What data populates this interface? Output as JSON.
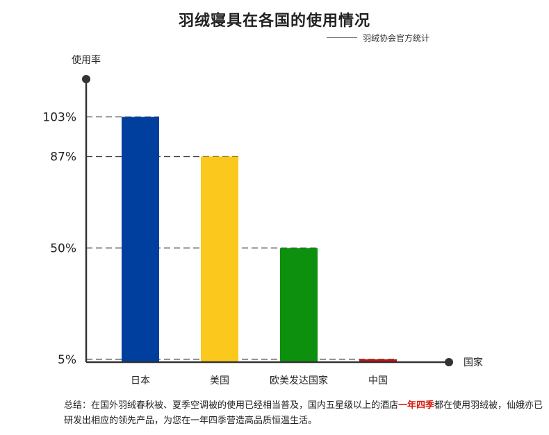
{
  "chart_data": {
    "type": "bar",
    "title": "羽绒寝具在各国的使用情况",
    "subtitle": "羽绒协会官方统计",
    "ylabel": "使用率",
    "xlabel": "国家",
    "categories": [
      "日本",
      "美国",
      "欧美发达国家",
      "中国"
    ],
    "values": [
      103,
      87,
      50,
      5
    ],
    "value_labels": [
      "103%",
      "87%",
      "50%",
      "5%"
    ],
    "colors": [
      "#003f9e",
      "#fbc81e",
      "#0c900e",
      "#c60f0f"
    ],
    "ylim": [
      0,
      120
    ],
    "grid": "dashed reference lines at each value"
  },
  "summary": {
    "prefix": "总结：在国外羽绒春秋被、夏季空调被的使用已经相当普及，国内五星级以上的酒店",
    "highlight": "一年四季",
    "suffix": "都在使用羽绒被，仙娥亦已研发出相应的领先产品，为您在一年四季营造高品质恒温生活。",
    "highlight_color": "#d61a0f"
  }
}
